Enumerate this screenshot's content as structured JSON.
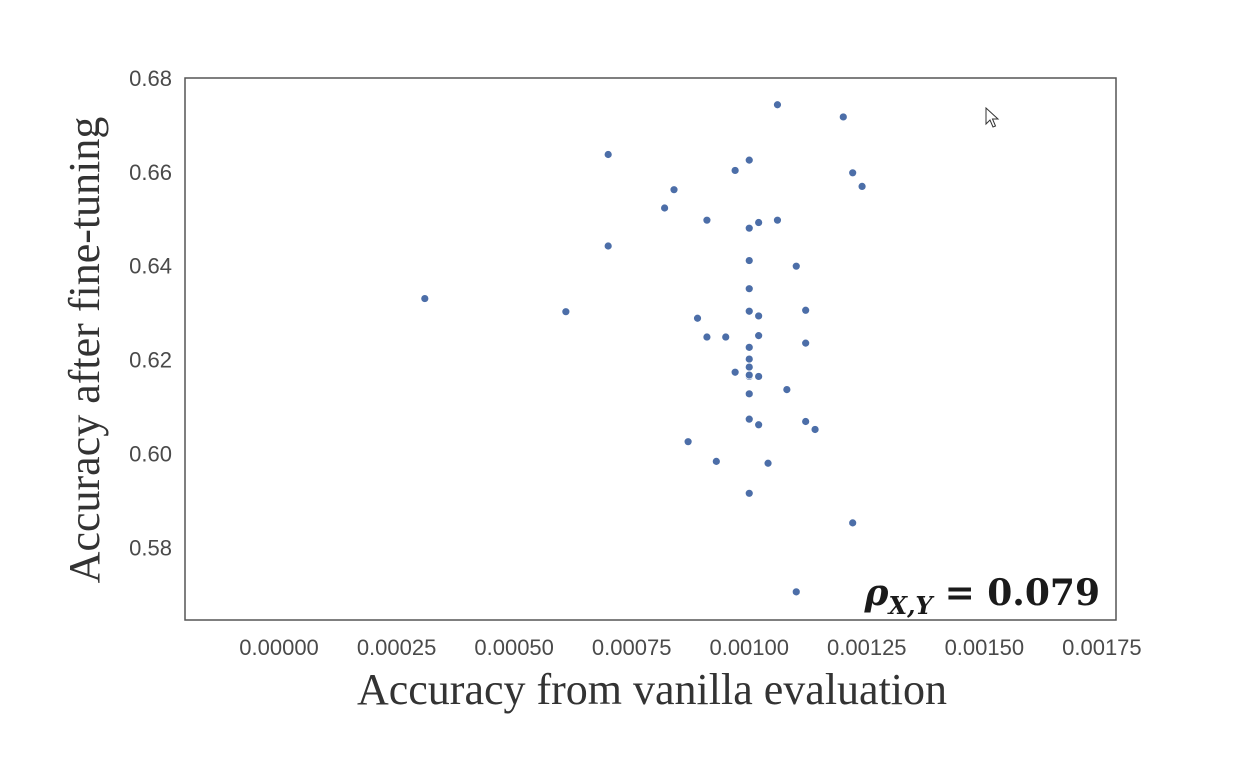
{
  "chart_data": {
    "type": "scatter",
    "xlabel": "Accuracy from vanilla evaluation",
    "ylabel": "Accuracy after fine-tuning",
    "xlim": [
      -0.0002,
      0.00178
    ],
    "ylim": [
      0.5645,
      0.68
    ],
    "x_ticks": [
      "0.00000",
      "0.00025",
      "0.00050",
      "0.00075",
      "0.00100",
      "0.00125",
      "0.00150",
      "0.00175"
    ],
    "y_ticks": [
      "0.58",
      "0.60",
      "0.62",
      "0.64",
      "0.66",
      "0.68"
    ],
    "grid": false,
    "annotation": {
      "rho": "ρ",
      "subscript": "X,Y",
      "value": "= 0.079"
    },
    "x": [
      0.00031,
      0.00061,
      0.0007,
      0.0007,
      0.00082,
      0.00084,
      0.00087,
      0.00089,
      0.00091,
      0.00091,
      0.00093,
      0.00095,
      0.00097,
      0.00097,
      0.001,
      0.001,
      0.001,
      0.001,
      0.001,
      0.001,
      0.001,
      0.001,
      0.001,
      0.001,
      0.001,
      0.001,
      0.001,
      0.00102,
      0.00102,
      0.00102,
      0.00102,
      0.00102,
      0.00104,
      0.00106,
      0.00106,
      0.00108,
      0.0011,
      0.0011,
      0.00112,
      0.00112,
      0.00112,
      0.00114,
      0.0012,
      0.00122,
      0.00122,
      0.00124
    ],
    "y": [
      0.633,
      0.6302,
      0.6637,
      0.6442,
      0.6523,
      0.6562,
      0.6025,
      0.6288,
      0.6497,
      0.6248,
      0.5983,
      0.6248,
      0.6603,
      0.6173,
      0.6625,
      0.648,
      0.6411,
      0.6351,
      0.6303,
      0.6226,
      0.6201,
      0.6184,
      0.6164,
      0.6127,
      0.6073,
      0.5915,
      0.6167,
      0.6492,
      0.6293,
      0.6251,
      0.6164,
      0.6061,
      0.5979,
      0.6743,
      0.6497,
      0.6136,
      0.6399,
      0.5705,
      0.6305,
      0.6235,
      0.6068,
      0.6051,
      0.6717,
      0.6598,
      0.5852,
      0.6569
    ]
  }
}
